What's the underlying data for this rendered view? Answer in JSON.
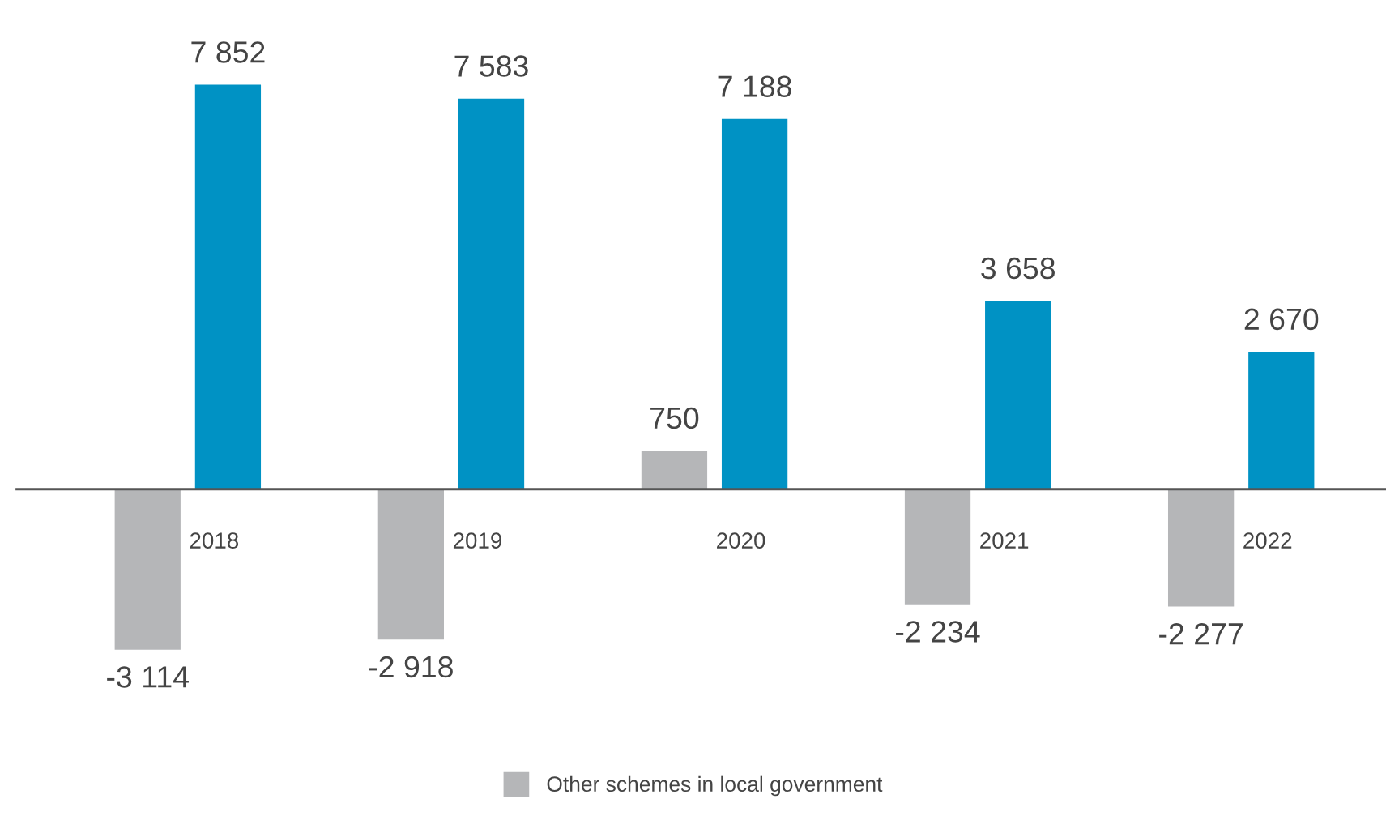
{
  "chart_data": {
    "type": "bar",
    "categories": [
      "2018",
      "2019",
      "2020",
      "2021",
      "2022"
    ],
    "series": [
      {
        "name": "Other schemes in local government",
        "color": "#b5b6b8",
        "values": [
          -3114,
          -2918,
          750,
          -2234,
          -2277
        ],
        "value_labels": [
          "-3 114",
          "-2 918",
          "750",
          "-2 234",
          "-2 277"
        ]
      },
      {
        "color": "#0092c4",
        "values": [
          7852,
          7583,
          7188,
          3658,
          2670
        ],
        "value_labels": [
          "7 852",
          "7 583",
          "7 188",
          "3 658",
          "2 670"
        ]
      }
    ],
    "grid": false,
    "legend": "bottom"
  }
}
